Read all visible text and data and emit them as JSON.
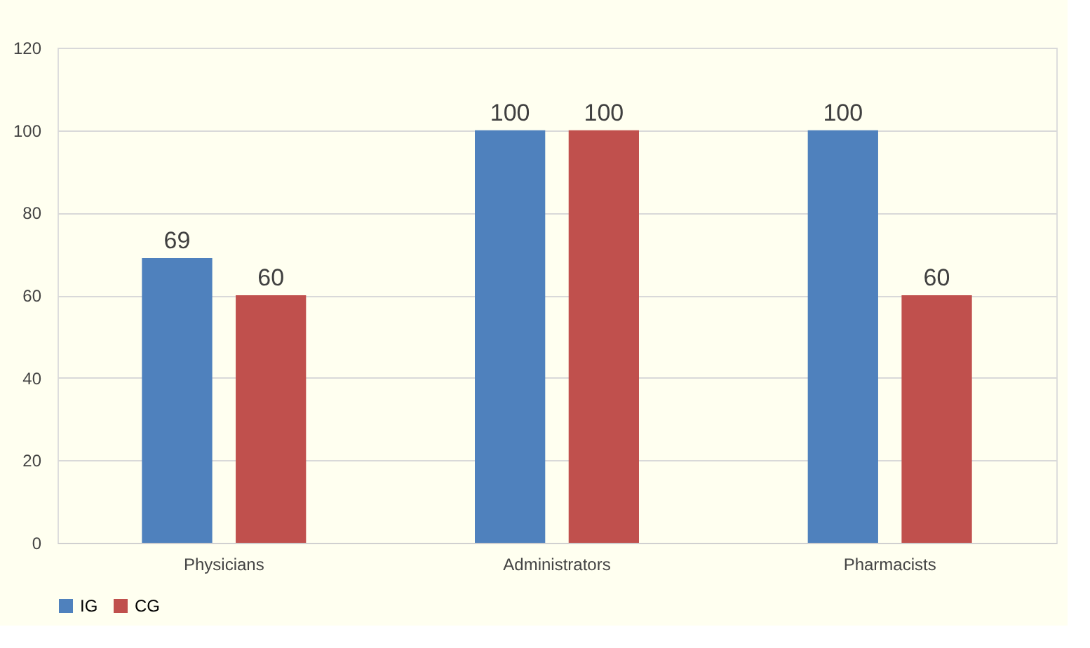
{
  "chart_data": {
    "type": "bar",
    "categories": [
      "Physicians",
      "Administrators",
      "Pharmacists"
    ],
    "series": [
      {
        "name": "IG",
        "color": "#4f81bd",
        "values": [
          69,
          100,
          100
        ]
      },
      {
        "name": "CG",
        "color": "#c0504d",
        "values": [
          60,
          100,
          60
        ]
      }
    ],
    "ylim": [
      0,
      120
    ],
    "yticks": [
      0,
      20,
      40,
      60,
      80,
      100,
      120
    ],
    "grid": "y",
    "legend": "bottom",
    "data_labels": true
  }
}
